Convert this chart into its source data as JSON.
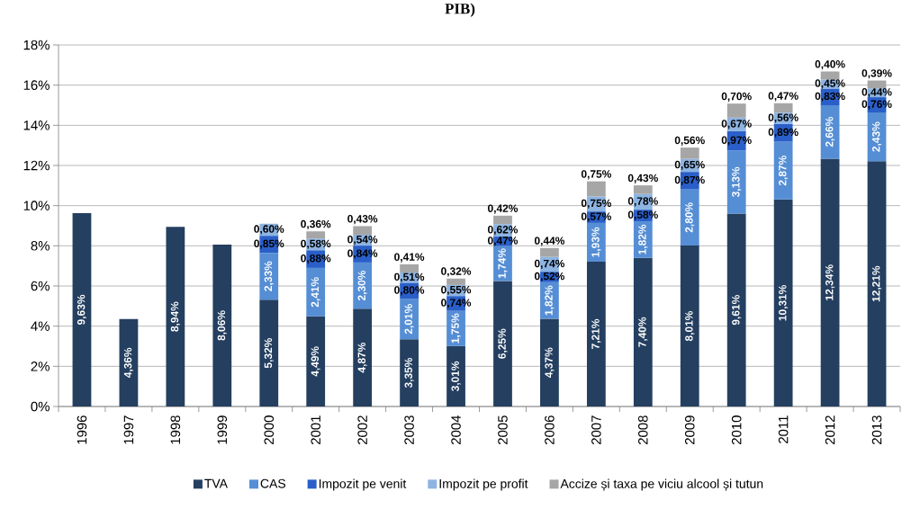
{
  "chart_data": {
    "type": "bar",
    "title": "PIB)",
    "stacked": true,
    "grid": "y",
    "legend": "bottom",
    "categories": [
      "1996",
      "1997",
      "1998",
      "1999",
      "2000",
      "2001",
      "2002",
      "2003",
      "2004",
      "2005",
      "2006",
      "2007",
      "2008",
      "2009",
      "2010",
      "2011",
      "2012",
      "2013"
    ],
    "ylim": [
      0,
      18
    ],
    "yticks": [
      {
        "value": 0,
        "label": "0%"
      },
      {
        "value": 2,
        "label": "2%"
      },
      {
        "value": 4,
        "label": "4%"
      },
      {
        "value": 6,
        "label": "6%"
      },
      {
        "value": 8,
        "label": "8%"
      },
      {
        "value": 10,
        "label": "10%"
      },
      {
        "value": 12,
        "label": "12%"
      },
      {
        "value": 14,
        "label": "14%"
      },
      {
        "value": 16,
        "label": "16%"
      },
      {
        "value": 18,
        "label": "18%"
      }
    ],
    "series": [
      {
        "name": "TVA",
        "color": "#243f60",
        "values": [
          9.63,
          4.36,
          8.94,
          8.06,
          5.32,
          4.49,
          4.87,
          3.35,
          3.01,
          6.25,
          4.37,
          7.21,
          7.4,
          8.01,
          9.61,
          10.31,
          12.34,
          12.21
        ],
        "value_labels": [
          "9,63%",
          "4,36%",
          "8,94%",
          "8,06%",
          "5,32%",
          "4,49%",
          "4,87%",
          "3,35%",
          "3,01%",
          "6,25%",
          "4,37%",
          "7,21%",
          "7,40%",
          "8,01%",
          "9,61%",
          "10,31%",
          "12,34%",
          "12,21%"
        ]
      },
      {
        "name": "CAS",
        "color": "#558ed5",
        "values": [
          null,
          null,
          null,
          null,
          2.33,
          2.41,
          2.3,
          2.01,
          1.75,
          1.74,
          1.82,
          1.93,
          1.82,
          2.8,
          3.13,
          2.87,
          2.66,
          2.43
        ],
        "value_labels": [
          null,
          null,
          null,
          null,
          "2,33%",
          "2,41%",
          "2,30%",
          "2,01%",
          "1,75%",
          "1,74%",
          "1,82%",
          "1,93%",
          "1,82%",
          "2,80%",
          "3,13%",
          "2,87%",
          "2,66%",
          "2,43%"
        ]
      },
      {
        "name": "Impozit pe venit",
        "color": "#2a5fc9",
        "values": [
          null,
          null,
          null,
          null,
          0.85,
          0.88,
          0.84,
          0.8,
          0.74,
          0.47,
          0.52,
          0.57,
          0.58,
          0.87,
          0.97,
          0.89,
          0.83,
          0.76
        ],
        "value_labels": [
          null,
          null,
          null,
          null,
          "0,85%",
          "0,88%",
          "0,84%",
          "0,80%",
          "0,74%",
          "0,47%",
          "0,52%",
          "0,57%",
          "0,58%",
          "0,87%",
          "0,97%",
          "0,89%",
          "0,83%",
          "0,76%"
        ]
      },
      {
        "name": "Impozit pe profit",
        "color": "#8db4e2",
        "values": [
          null,
          null,
          null,
          null,
          0.6,
          0.58,
          0.54,
          0.51,
          0.55,
          0.62,
          0.74,
          0.75,
          0.78,
          0.65,
          0.67,
          0.56,
          0.45,
          0.44
        ],
        "value_labels": [
          null,
          null,
          null,
          null,
          "0,60%",
          "0,58%",
          "0,54%",
          "0,51%",
          "0,55%",
          "0,62%",
          "0,74%",
          "0,75%",
          "0,78%",
          "0,65%",
          "0,67%",
          "0,56%",
          "0,45%",
          "0,44%"
        ]
      },
      {
        "name": "Accize și taxa pe viciu alcool și tutun",
        "color": "#a6a6a6",
        "values": [
          null,
          null,
          null,
          null,
          null,
          0.36,
          0.43,
          0.41,
          0.32,
          0.42,
          0.44,
          0.75,
          0.43,
          0.56,
          0.7,
          0.47,
          0.4,
          0.39
        ],
        "value_labels": [
          null,
          null,
          null,
          null,
          null,
          "0,36%",
          "0,43%",
          "0,41%",
          "0,32%",
          "0,42%",
          "0,44%",
          "0,75%",
          "0,43%",
          "0,56%",
          "0,70%",
          "0,47%",
          "0,40%",
          "0,39%"
        ]
      }
    ]
  }
}
